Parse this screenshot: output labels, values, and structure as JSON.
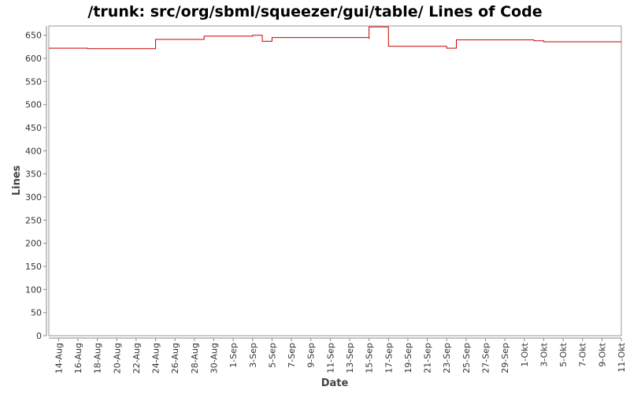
{
  "chart_data": {
    "type": "line",
    "title": "/trunk: src/org/sbml/squeezer/gui/table/ Lines of Code",
    "xlabel": "Date",
    "ylabel": "Lines",
    "ylim": [
      0,
      670
    ],
    "yticks": [
      0,
      50,
      100,
      150,
      200,
      250,
      300,
      350,
      400,
      450,
      500,
      550,
      600,
      650
    ],
    "xlim": [
      "13-Aug",
      "11-Okt"
    ],
    "categories": [
      "14-Aug",
      "16-Aug",
      "18-Aug",
      "20-Aug",
      "22-Aug",
      "24-Aug",
      "26-Aug",
      "28-Aug",
      "30-Aug",
      "1-Sep",
      "3-Sep",
      "5-Sep",
      "7-Sep",
      "9-Sep",
      "11-Sep",
      "13-Sep",
      "15-Sep",
      "17-Sep",
      "19-Sep",
      "21-Sep",
      "23-Sep",
      "25-Sep",
      "27-Sep",
      "29-Sep",
      "1-Okt",
      "3-Okt",
      "5-Okt",
      "7-Okt",
      "9-Okt",
      "11-Okt"
    ],
    "step": true,
    "grid": false,
    "series": [
      {
        "color": "#cc0000",
        "points": [
          {
            "x": "13-Aug",
            "y": 622
          },
          {
            "x": "17-Aug",
            "y": 621
          },
          {
            "x": "24-Aug",
            "y": 641
          },
          {
            "x": "29-Aug",
            "y": 648
          },
          {
            "x": "3-Sep",
            "y": 650
          },
          {
            "x": "4-Sep",
            "y": 637
          },
          {
            "x": "5-Sep",
            "y": 645
          },
          {
            "x": "15-Sep",
            "y": 642
          },
          {
            "x": "15-Sep",
            "y": 668
          },
          {
            "x": "17-Sep",
            "y": 626
          },
          {
            "x": "23-Sep",
            "y": 622
          },
          {
            "x": "24-Sep",
            "y": 640
          },
          {
            "x": "2-Okt",
            "y": 638
          },
          {
            "x": "3-Okt",
            "y": 636
          },
          {
            "x": "11-Okt",
            "y": 636
          }
        ]
      }
    ]
  }
}
